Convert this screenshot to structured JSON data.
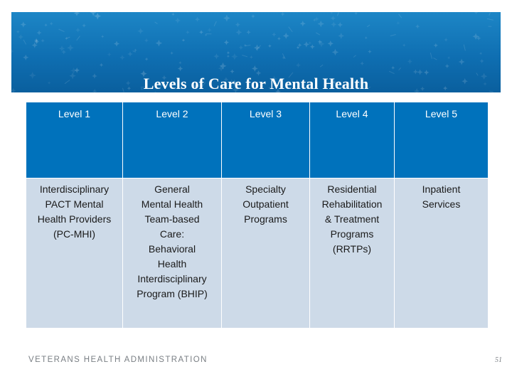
{
  "slide": {
    "title": "Levels of Care for Mental Health",
    "footer": "VETERANS HEALTH ADMINISTRATION",
    "page_number": "51"
  },
  "table": {
    "headers": [
      "Level 1",
      "Level 2",
      "Level 3",
      "Level 4",
      "Level 5"
    ],
    "cells": [
      [
        "Interdisciplinary",
        "PACT Mental",
        "Health Providers",
        "(PC-MHI)"
      ],
      [
        "General",
        "Mental Health",
        "Team-based",
        "Care:",
        "Behavioral",
        "Health",
        "Interdisciplinary",
        "Program (BHIP)"
      ],
      [
        "Specialty",
        "Outpatient",
        "Programs"
      ],
      [
        "Residential",
        "Rehabilitation",
        "& Treatment",
        "Programs",
        "(RRTPs)"
      ],
      [
        "Inpatient",
        "Services"
      ]
    ]
  },
  "colors": {
    "banner_blue": "#0f6fb2",
    "header_blue": "#0072bc",
    "body_cell": "#cddae8",
    "footer_gray": "#7a7f84"
  }
}
